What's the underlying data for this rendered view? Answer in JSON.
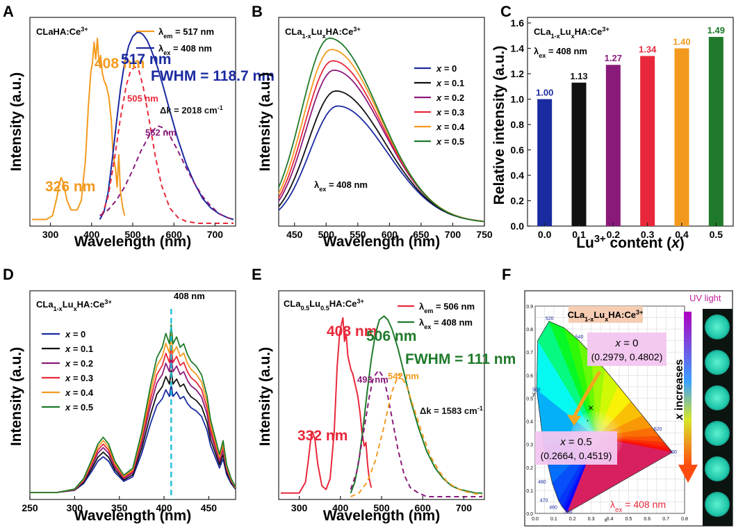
{
  "chart_data": [
    {
      "panel": "A",
      "type": "line",
      "title": "CLaHA:Ce3+",
      "title_sub": "",
      "title_sup": "3+",
      "xlabel": "Wavelength (nm)",
      "ylabel": "Intensity (a.u.)",
      "xlim": [
        250,
        750
      ],
      "xticks": [
        300,
        400,
        500,
        600,
        700
      ],
      "legend": [
        {
          "label": "λem = 517 nm",
          "color": "#f39a1e"
        },
        {
          "label": "λex = 408 nm",
          "color": "#1a2aa0"
        }
      ],
      "annotations": [
        {
          "text": "408 nm",
          "color": "#f39a1e"
        },
        {
          "text": "517 nm",
          "color": "#1a2aa0"
        },
        {
          "text": "FWHM = 118.7 nm",
          "color": "#1a2aa0"
        },
        {
          "text": "505 nm",
          "color": "#e8283a"
        },
        {
          "text": "Δk = 2018 cm-1",
          "color": "#111111"
        },
        {
          "text": "562 nm",
          "color": "#8a1a7a"
        },
        {
          "text": "326 nm",
          "color": "#f39a1e"
        }
      ],
      "series": [
        {
          "name": "excitation",
          "color": "#f39a1e",
          "x": [
            255,
            290,
            305,
            315,
            322,
            326,
            332,
            340,
            350,
            365,
            375,
            385,
            392,
            398,
            402,
            406,
            410,
            414,
            418,
            422,
            426,
            430,
            436,
            442,
            448,
            452,
            458,
            462,
            466,
            470,
            475,
            480
          ],
          "y": [
            0.02,
            0.02,
            0.04,
            0.13,
            0.21,
            0.24,
            0.21,
            0.12,
            0.07,
            0.07,
            0.12,
            0.33,
            0.61,
            0.79,
            0.84,
            0.95,
            0.86,
            0.97,
            0.84,
            0.88,
            0.79,
            0.75,
            0.72,
            0.66,
            0.54,
            0.36,
            0.29,
            0.19,
            0.36,
            0.17,
            0.09,
            0.04
          ]
        },
        {
          "name": "emission",
          "color": "#1a2aa0",
          "x": [
            420,
            430,
            440,
            450,
            460,
            470,
            480,
            490,
            500,
            510,
            517,
            525,
            535,
            545,
            560,
            575,
            590,
            610,
            630,
            650,
            670,
            690,
            710,
            730,
            745
          ],
          "y": [
            0.02,
            0.06,
            0.16,
            0.33,
            0.52,
            0.7,
            0.84,
            0.93,
            0.98,
            1.0,
            1.0,
            0.99,
            0.96,
            0.91,
            0.82,
            0.71,
            0.59,
            0.44,
            0.31,
            0.21,
            0.13,
            0.08,
            0.05,
            0.03,
            0.02
          ]
        },
        {
          "name": "gauss 505 nm",
          "color": "#e8283a",
          "dash": true,
          "x": [
            425,
            440,
            455,
            470,
            485,
            495,
            505,
            515,
            525,
            540,
            555,
            570,
            590,
            610,
            630,
            660,
            700,
            745
          ],
          "y": [
            0.04,
            0.14,
            0.33,
            0.55,
            0.73,
            0.8,
            0.82,
            0.8,
            0.72,
            0.54,
            0.35,
            0.2,
            0.08,
            0.03,
            0.01,
            0.0,
            0.0,
            0.0
          ]
        },
        {
          "name": "gauss 562 nm",
          "color": "#8a1a7a",
          "dash": true,
          "x": [
            420,
            440,
            460,
            480,
            500,
            520,
            540,
            555,
            562,
            575,
            590,
            610,
            630,
            650,
            670,
            690,
            710,
            730,
            745
          ],
          "y": [
            0.04,
            0.07,
            0.12,
            0.19,
            0.28,
            0.38,
            0.46,
            0.5,
            0.51,
            0.5,
            0.46,
            0.38,
            0.29,
            0.21,
            0.14,
            0.09,
            0.05,
            0.03,
            0.02
          ]
        }
      ]
    },
    {
      "panel": "B",
      "type": "line",
      "title": "CLa1-xLuxHA:Ce3+",
      "xlabel": "Wavelength (nm)",
      "ylabel": "Intensity (a.u.)",
      "xlim": [
        425,
        750
      ],
      "xticks": [
        450,
        500,
        550,
        600,
        650,
        700,
        750
      ],
      "annotation": "λex = 408 nm",
      "series": [
        {
          "name": "x = 0",
          "color": "#1a2aa0",
          "peak": 0.62,
          "center": 518
        },
        {
          "name": "x = 0.1",
          "color": "#111111",
          "peak": 0.7,
          "center": 515
        },
        {
          "name": "x = 0.2",
          "color": "#8a1a7a",
          "peak": 0.81,
          "center": 512
        },
        {
          "name": "x = 0.3",
          "color": "#e8283a",
          "peak": 0.86,
          "center": 510
        },
        {
          "name": "x = 0.4",
          "color": "#f39a1e",
          "peak": 0.92,
          "center": 508
        },
        {
          "name": "x = 0.5",
          "color": "#1e7a2a",
          "peak": 0.98,
          "center": 505
        }
      ]
    },
    {
      "panel": "C",
      "type": "bar",
      "title": "CLa1-xLuxHA:Ce3+",
      "subtitle": "λex = 408 nm",
      "xlabel": "Lu3+ content (x)",
      "ylabel": "Relative intensity (a.u.)",
      "ylim": [
        0,
        1.6
      ],
      "yticks": [
        0.0,
        0.2,
        0.4,
        0.6,
        0.8,
        1.0,
        1.2,
        1.4,
        1.6
      ],
      "categories": [
        "0.0",
        "0.1",
        "0.2",
        "0.3",
        "0.4",
        "0.5"
      ],
      "values": [
        1.0,
        1.13,
        1.27,
        1.34,
        1.4,
        1.49
      ],
      "labels": [
        "1.00",
        "1.13",
        "1.27",
        "1.34",
        "1.40",
        "1.49"
      ],
      "colors": [
        "#1a2aa0",
        "#111111",
        "#8a1a7a",
        "#e8283a",
        "#f39a1e",
        "#1e7a2a"
      ]
    },
    {
      "panel": "D",
      "type": "line",
      "title": "CLa1-xLuxHA:Ce3+",
      "xlabel": "Wavelength (nm)",
      "ylabel": "Intensity (a.u.)",
      "xlim": [
        250,
        480
      ],
      "xticks": [
        250,
        300,
        350,
        400,
        450
      ],
      "annotation": "408 nm",
      "marker_x": 408,
      "series": [
        {
          "name": "x = 0",
          "color": "#1a2aa0",
          "scale": 0.62
        },
        {
          "name": "x = 0.1",
          "color": "#111111",
          "scale": 0.7
        },
        {
          "name": "x = 0.2",
          "color": "#8a1a7a",
          "scale": 0.78
        },
        {
          "name": "x = 0.3",
          "color": "#e8283a",
          "scale": 0.84
        },
        {
          "name": "x = 0.4",
          "color": "#f39a1e",
          "scale": 0.9
        },
        {
          "name": "x = 0.5",
          "color": "#1e7a2a",
          "scale": 0.96
        }
      ],
      "shape": {
        "x": [
          250,
          280,
          300,
          310,
          320,
          326,
          332,
          338,
          345,
          355,
          365,
          375,
          385,
          392,
          398,
          402,
          406,
          408,
          410,
          414,
          418,
          422,
          426,
          430,
          436,
          442,
          448,
          452,
          458,
          462,
          466,
          470,
          475,
          480
        ],
        "y": [
          0.0,
          0.0,
          0.02,
          0.08,
          0.2,
          0.28,
          0.32,
          0.28,
          0.18,
          0.1,
          0.14,
          0.35,
          0.62,
          0.78,
          0.84,
          0.92,
          0.86,
          0.97,
          0.86,
          0.9,
          0.84,
          0.86,
          0.8,
          0.76,
          0.73,
          0.68,
          0.56,
          0.42,
          0.3,
          0.22,
          0.3,
          0.16,
          0.08,
          0.03
        ]
      }
    },
    {
      "panel": "E",
      "type": "line",
      "title": "CLa0.5Lu0.5HA:Ce3+",
      "xlabel": "Wavelength (nm)",
      "ylabel": "Intensity (a.u.)",
      "xlim": [
        250,
        750
      ],
      "xticks": [
        300,
        400,
        500,
        600,
        700
      ],
      "legend": [
        {
          "label": "λem = 506 nm",
          "color": "#e8283a"
        },
        {
          "label": "λex = 408 nm",
          "color": "#1e7a2a"
        }
      ],
      "annotations": [
        {
          "text": "408 nm",
          "color": "#e8283a"
        },
        {
          "text": "506 nm",
          "color": "#1e7a2a"
        },
        {
          "text": "FWHM = 111 nm",
          "color": "#1e7a2a"
        },
        {
          "text": "493 nm",
          "color": "#8a1a7a"
        },
        {
          "text": "542 nm",
          "color": "#f39a1e"
        },
        {
          "text": "Δk = 1583 cm-1",
          "color": "#111111"
        },
        {
          "text": "332 nm",
          "color": "#e8283a"
        }
      ],
      "series": [
        {
          "name": "excitation",
          "color": "#e8283a",
          "x": [
            255,
            300,
            315,
            322,
            328,
            332,
            338,
            345,
            355,
            365,
            375,
            385,
            392,
            398,
            402,
            406,
            410,
            414,
            418,
            422,
            426,
            430,
            436,
            442,
            448,
            452,
            458,
            462,
            466,
            470,
            475
          ],
          "y": [
            0.02,
            0.02,
            0.08,
            0.2,
            0.32,
            0.36,
            0.32,
            0.18,
            0.06,
            0.04,
            0.1,
            0.36,
            0.72,
            0.9,
            0.95,
            0.99,
            0.86,
            0.9,
            0.78,
            0.74,
            0.7,
            0.68,
            0.62,
            0.56,
            0.46,
            0.36,
            0.28,
            0.3,
            0.18,
            0.1,
            0.05
          ]
        },
        {
          "name": "emission",
          "color": "#1e7a2a",
          "x": [
            425,
            435,
            445,
            455,
            465,
            475,
            485,
            495,
            506,
            515,
            525,
            540,
            555,
            570,
            590,
            610,
            630,
            650,
            670,
            690,
            710,
            730,
            745
          ],
          "y": [
            0.02,
            0.08,
            0.2,
            0.38,
            0.58,
            0.76,
            0.9,
            0.98,
            1.0,
            0.98,
            0.93,
            0.82,
            0.68,
            0.54,
            0.38,
            0.25,
            0.16,
            0.1,
            0.06,
            0.04,
            0.03,
            0.02,
            0.02
          ]
        },
        {
          "name": "gauss 493 nm",
          "color": "#8a1a7a",
          "dash": true,
          "x": [
            425,
            440,
            455,
            470,
            480,
            493,
            505,
            515,
            525,
            540,
            555,
            570,
            590,
            610,
            640,
            680,
            745
          ],
          "y": [
            0.04,
            0.14,
            0.34,
            0.55,
            0.66,
            0.7,
            0.66,
            0.56,
            0.44,
            0.26,
            0.12,
            0.05,
            0.02,
            0.0,
            0.0,
            0.0,
            0.0
          ]
        },
        {
          "name": "gauss 542 nm",
          "color": "#f39a1e",
          "dash": true,
          "x": [
            425,
            445,
            465,
            485,
            505,
            525,
            542,
            560,
            580,
            600,
            620,
            640,
            660,
            680,
            700,
            720,
            745
          ],
          "y": [
            0.0,
            0.02,
            0.08,
            0.2,
            0.38,
            0.58,
            0.68,
            0.62,
            0.48,
            0.34,
            0.22,
            0.14,
            0.08,
            0.05,
            0.03,
            0.02,
            0.01
          ]
        }
      ]
    },
    {
      "panel": "F",
      "type": "cie-diagram",
      "title": "CLa1-xLuxHA:Ce3+",
      "side_label": "UV light",
      "arrow_label": "x increases",
      "excitation_label": "λex = 408 nm",
      "xlabel": "x",
      "ylabel": "y",
      "xlim": [
        0.0,
        0.8
      ],
      "ylim": [
        0.0,
        0.9
      ],
      "xticks": [
        "0.0",
        "0.1",
        "0.2",
        "0.3",
        "0.4",
        "0.5",
        "0.6",
        "0.7",
        "0.8"
      ],
      "yticks": [
        "0.0",
        "0.1",
        "0.2",
        "0.3",
        "0.4",
        "0.5",
        "0.6",
        "0.7",
        "0.8",
        "0.9"
      ],
      "locus_labels": [
        "520",
        "540",
        "500",
        "480",
        "470",
        "460",
        "380",
        "620",
        "700"
      ],
      "points": [
        {
          "label": "x = 0",
          "coords": "(0.2979, 0.4802)",
          "x": 0.2979,
          "y": 0.4802
        },
        {
          "label": "x = 0.5",
          "coords": "(0.2664, 0.4519)",
          "x": 0.2664,
          "y": 0.4519
        }
      ],
      "locus": {
        "x": [
          0.1741,
          0.1738,
          0.1736,
          0.1733,
          0.1726,
          0.1714,
          0.1689,
          0.1644,
          0.1566,
          0.144,
          0.1241,
          0.0913,
          0.0454,
          0.0082,
          0.0139,
          0.0743,
          0.1547,
          0.2296,
          0.3016,
          0.3731,
          0.4441,
          0.5125,
          0.5752,
          0.627,
          0.6658,
          0.6915,
          0.7079,
          0.719,
          0.726,
          0.7347
        ],
        "y": [
          0.005,
          0.005,
          0.0049,
          0.0048,
          0.0048,
          0.0051,
          0.0069,
          0.0109,
          0.0177,
          0.0297,
          0.0578,
          0.1327,
          0.295,
          0.5384,
          0.7502,
          0.8338,
          0.8059,
          0.7543,
          0.6923,
          0.6245,
          0.5547,
          0.4866,
          0.4242,
          0.3725,
          0.334,
          0.3083,
          0.292,
          0.2809,
          0.274,
          0.2653
        ]
      },
      "colors": {
        "accent": "#e8283a",
        "box": "#f3c6f0",
        "title_box": "#f6cdb3",
        "arrow": "#f3a81e"
      }
    }
  ]
}
